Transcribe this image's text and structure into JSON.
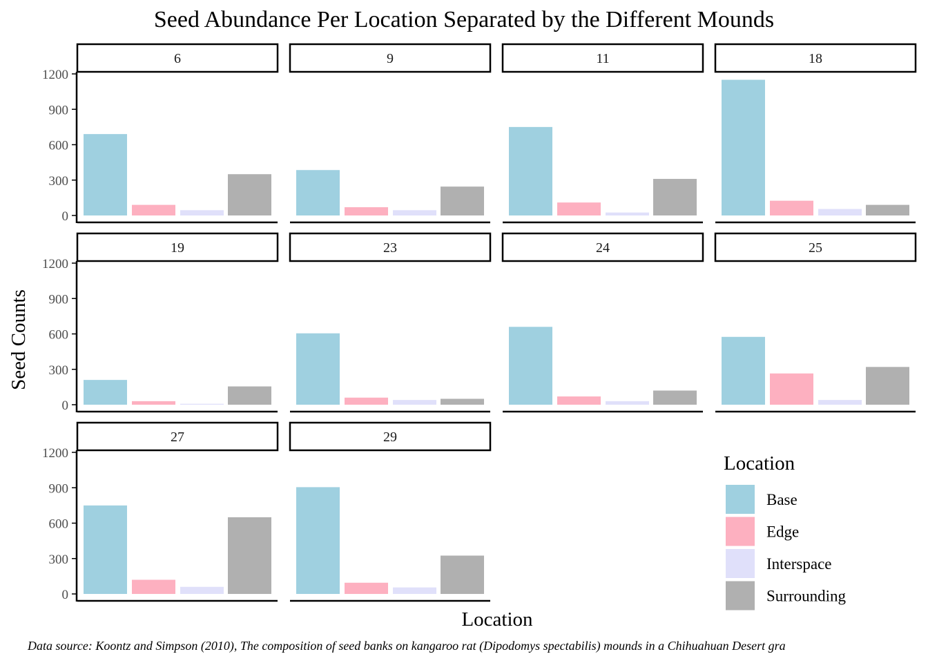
{
  "chart_data": {
    "type": "bar",
    "title": "Seed Abundance Per Location Separated by the Different Mounds",
    "xlabel": "Location",
    "ylabel": "Seed Counts",
    "ylim": [
      0,
      1200
    ],
    "yticks": [
      0,
      300,
      600,
      900,
      1200
    ],
    "grid": false,
    "categories": [
      "Base",
      "Edge",
      "Interspace",
      "Surrounding"
    ],
    "colors": [
      "#9FD0E0",
      "#FDB0C0",
      "#E0E0FA",
      "#B0B0B0"
    ],
    "legend": {
      "title": "Location",
      "position": "bottom-right",
      "items": [
        "Base",
        "Edge",
        "Interspace",
        "Surrounding"
      ]
    },
    "panels": [
      {
        "label": "6",
        "values": [
          690,
          90,
          45,
          350
        ]
      },
      {
        "label": "9",
        "values": [
          385,
          70,
          45,
          245
        ]
      },
      {
        "label": "11",
        "values": [
          750,
          110,
          25,
          310
        ]
      },
      {
        "label": "18",
        "values": [
          1150,
          125,
          55,
          90
        ]
      },
      {
        "label": "19",
        "values": [
          210,
          30,
          8,
          155
        ]
      },
      {
        "label": "23",
        "values": [
          605,
          60,
          40,
          50
        ]
      },
      {
        "label": "24",
        "values": [
          660,
          70,
          30,
          120
        ]
      },
      {
        "label": "25",
        "values": [
          575,
          265,
          40,
          320
        ]
      },
      {
        "label": "27",
        "values": [
          750,
          120,
          60,
          650
        ]
      },
      {
        "label": "29",
        "values": [
          905,
          95,
          55,
          325
        ]
      }
    ],
    "caption": "Data source: Koontz and Simpson (2010), The composition of seed banks on kangaroo rat (Dipodomys spectabilis) mounds in a Chihuahuan Desert gra"
  }
}
